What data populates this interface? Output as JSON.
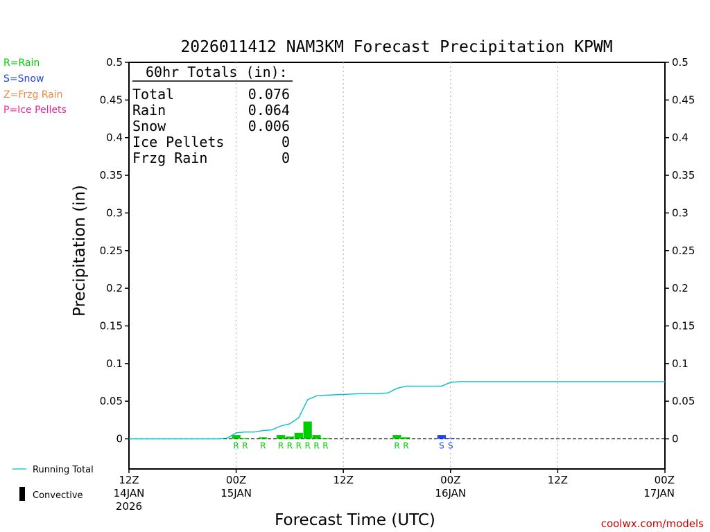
{
  "chart_data": {
    "type": "bar",
    "title": "2026011412 NAM3KM Forecast Precipitation KPWM",
    "xlabel": "Forecast Time (UTC)",
    "ylabel": "Precipitation (in)",
    "ylim": [
      -0.04,
      0.5
    ],
    "xlim": [
      0,
      60
    ],
    "grid": "vertical dotted",
    "y_ticks": [
      0,
      0.05,
      0.1,
      0.15,
      0.2,
      0.25,
      0.3,
      0.35,
      0.4,
      0.45,
      0.5
    ],
    "y_tick_labels": [
      "0",
      "0.05",
      "0.1",
      "0.15",
      "0.2",
      "0.25",
      "0.3",
      "0.35",
      "0.4",
      "0.45",
      "0.5"
    ],
    "x_ticks": [
      {
        "hour": 0,
        "lines": [
          "12Z",
          "14JAN",
          "2026"
        ]
      },
      {
        "hour": 12,
        "lines": [
          "00Z",
          "15JAN"
        ]
      },
      {
        "hour": 24,
        "lines": [
          "12Z"
        ]
      },
      {
        "hour": 36,
        "lines": [
          "00Z",
          "16JAN"
        ]
      },
      {
        "hour": 48,
        "lines": [
          "12Z"
        ]
      },
      {
        "hour": 60,
        "lines": [
          "00Z",
          "17JAN"
        ]
      }
    ],
    "bars": [
      {
        "hour": 12.0,
        "value": 0.005,
        "type": "R"
      },
      {
        "hour": 13.0,
        "value": 0.001,
        "type": "R"
      },
      {
        "hour": 15.0,
        "value": 0.002,
        "type": "R"
      },
      {
        "hour": 17.0,
        "value": 0.005,
        "type": "R"
      },
      {
        "hour": 18.0,
        "value": 0.003,
        "type": "R"
      },
      {
        "hour": 19.0,
        "value": 0.008,
        "type": "R"
      },
      {
        "hour": 20.0,
        "value": 0.023,
        "type": "R"
      },
      {
        "hour": 21.0,
        "value": 0.005,
        "type": "R"
      },
      {
        "hour": 22.0,
        "value": 0.001,
        "type": "R"
      },
      {
        "hour": 30.0,
        "value": 0.005,
        "type": "R"
      },
      {
        "hour": 31.0,
        "value": 0.002,
        "type": "R"
      },
      {
        "hour": 35.0,
        "value": 0.005,
        "type": "S"
      },
      {
        "hour": 36.0,
        "value": 0.001,
        "type": "S"
      }
    ],
    "running_total": {
      "name": "Running Total",
      "hours": [
        0,
        3,
        6,
        9,
        10,
        11,
        12,
        13,
        14,
        15,
        16,
        17,
        18,
        19,
        20,
        21,
        22,
        24,
        26,
        28,
        29,
        30,
        31,
        33,
        35,
        36,
        37,
        40,
        45,
        50,
        55,
        60
      ],
      "values": [
        0,
        0,
        0,
        0,
        0,
        0.001,
        0.008,
        0.009,
        0.009,
        0.011,
        0.012,
        0.017,
        0.02,
        0.028,
        0.052,
        0.057,
        0.058,
        0.059,
        0.06,
        0.06,
        0.061,
        0.067,
        0.07,
        0.07,
        0.07,
        0.075,
        0.076,
        0.076,
        0.076,
        0.076,
        0.076,
        0.076
      ]
    },
    "type_colors": {
      "R": "#00cc00",
      "S": "#2244ee",
      "Z": "#ee8844",
      "P": "#ee2299"
    },
    "running_total_color": "#00c0c8",
    "convective_color": "#000000"
  },
  "legend_left": {
    "rain": "R=Rain",
    "snow": "S=Snow",
    "frzg": "Z=Frzg Rain",
    "ice": "P=Ice Pellets"
  },
  "legend_bottom": {
    "running_total": "Running Total",
    "convective": "Convective"
  },
  "totals_box": {
    "header": "60hr Totals (in):",
    "rows": [
      {
        "label": "Total",
        "value": "0.076"
      },
      {
        "label": "Rain",
        "value": "0.064"
      },
      {
        "label": "Snow",
        "value": "0.006"
      },
      {
        "label": "Ice Pellets",
        "value": "0"
      },
      {
        "label": "Frzg Rain",
        "value": "0"
      }
    ]
  },
  "credit": "coolwx.com/models"
}
